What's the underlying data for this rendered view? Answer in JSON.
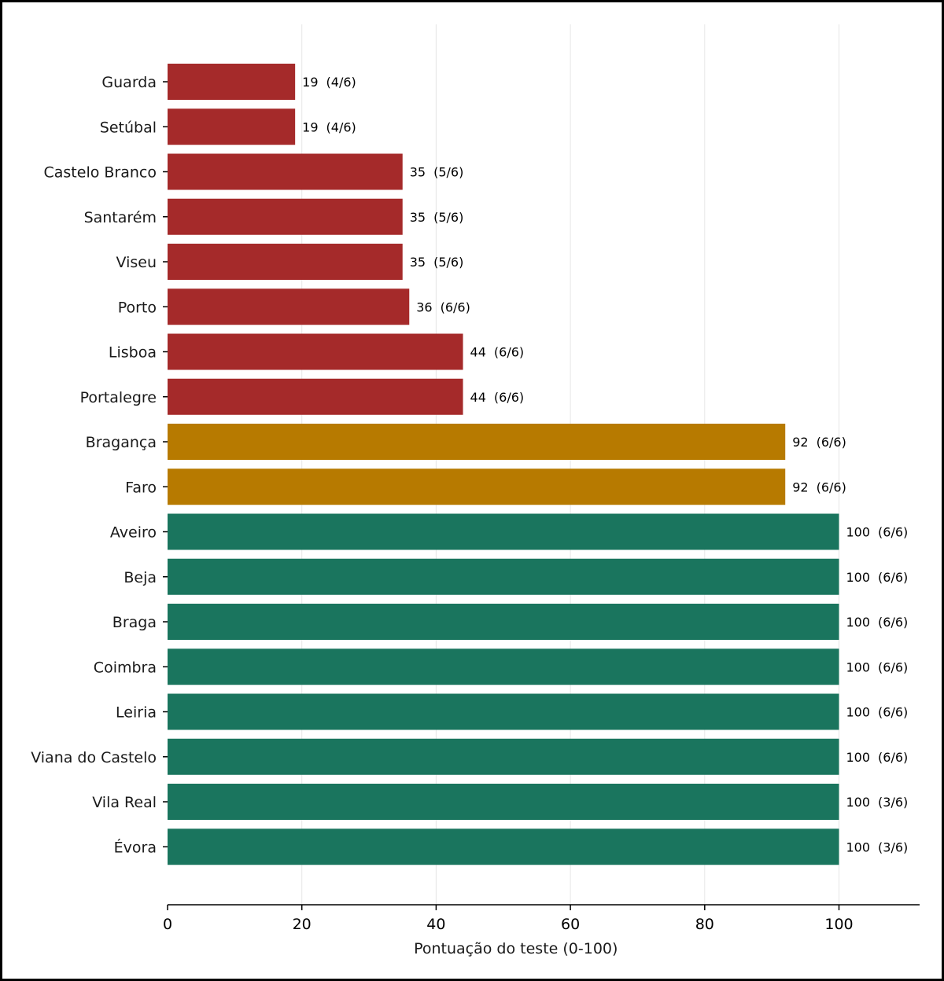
{
  "chart_data": {
    "type": "bar",
    "orientation": "horizontal",
    "title": "",
    "xlabel": "Pontuação do teste (0-100)",
    "ylabel": "",
    "xlim": [
      0,
      112
    ],
    "xticks": [
      0,
      20,
      40,
      60,
      80,
      100
    ],
    "grid": "vertical",
    "categories": [
      "Guarda",
      "Setúbal",
      "Castelo Branco",
      "Santarém",
      "Viseu",
      "Porto",
      "Lisboa",
      "Portalegre",
      "Bragança",
      "Faro",
      "Aveiro",
      "Beja",
      "Braga",
      "Coimbra",
      "Leiria",
      "Viana do Castelo",
      "Vila Real",
      "Évora"
    ],
    "values": [
      19,
      19,
      35,
      35,
      35,
      36,
      44,
      44,
      92,
      92,
      100,
      100,
      100,
      100,
      100,
      100,
      100,
      100
    ],
    "annotations": [
      "(4/6)",
      "(4/6)",
      "(5/6)",
      "(5/6)",
      "(5/6)",
      "(6/6)",
      "(6/6)",
      "(6/6)",
      "(6/6)",
      "(6/6)",
      "(6/6)",
      "(6/6)",
      "(6/6)",
      "(6/6)",
      "(6/6)",
      "(6/6)",
      "(3/6)",
      "(3/6)"
    ],
    "bar_colors": [
      "#a52a2a",
      "#a52a2a",
      "#a52a2a",
      "#a52a2a",
      "#a52a2a",
      "#a52a2a",
      "#a52a2a",
      "#a52a2a",
      "#b77a00",
      "#b77a00",
      "#1a755e",
      "#1a755e",
      "#1a755e",
      "#1a755e",
      "#1a755e",
      "#1a755e",
      "#1a755e",
      "#1a755e"
    ]
  }
}
